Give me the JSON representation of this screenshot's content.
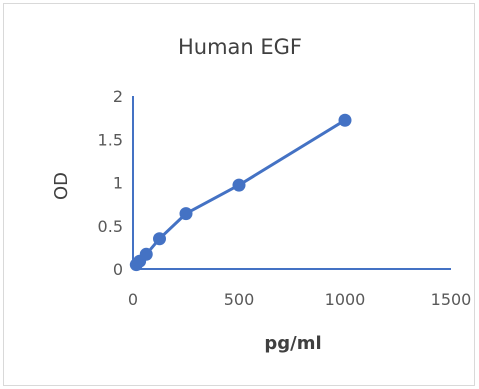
{
  "chart_data": {
    "type": "line",
    "title": "Human EGF",
    "xlabel": "pg/ml",
    "ylabel": "OD",
    "xlim": [
      0,
      1500
    ],
    "ylim": [
      0,
      2
    ],
    "x_ticks": [
      0,
      500,
      1000,
      1500
    ],
    "y_ticks": [
      0,
      0.5,
      1,
      1.5,
      2
    ],
    "x_tick_labels": [
      "0",
      "500",
      "1000",
      "1500"
    ],
    "y_tick_labels": [
      "0",
      "0.5",
      "1",
      "1.5",
      "2"
    ],
    "grid": false,
    "legend": "none",
    "series": [
      {
        "x": [
          15.6,
          31.2,
          62.5,
          125,
          250,
          500,
          1000
        ],
        "y": [
          0.05,
          0.09,
          0.17,
          0.35,
          0.64,
          0.97,
          1.72
        ],
        "color": "#4472c4",
        "markers": true
      }
    ]
  }
}
